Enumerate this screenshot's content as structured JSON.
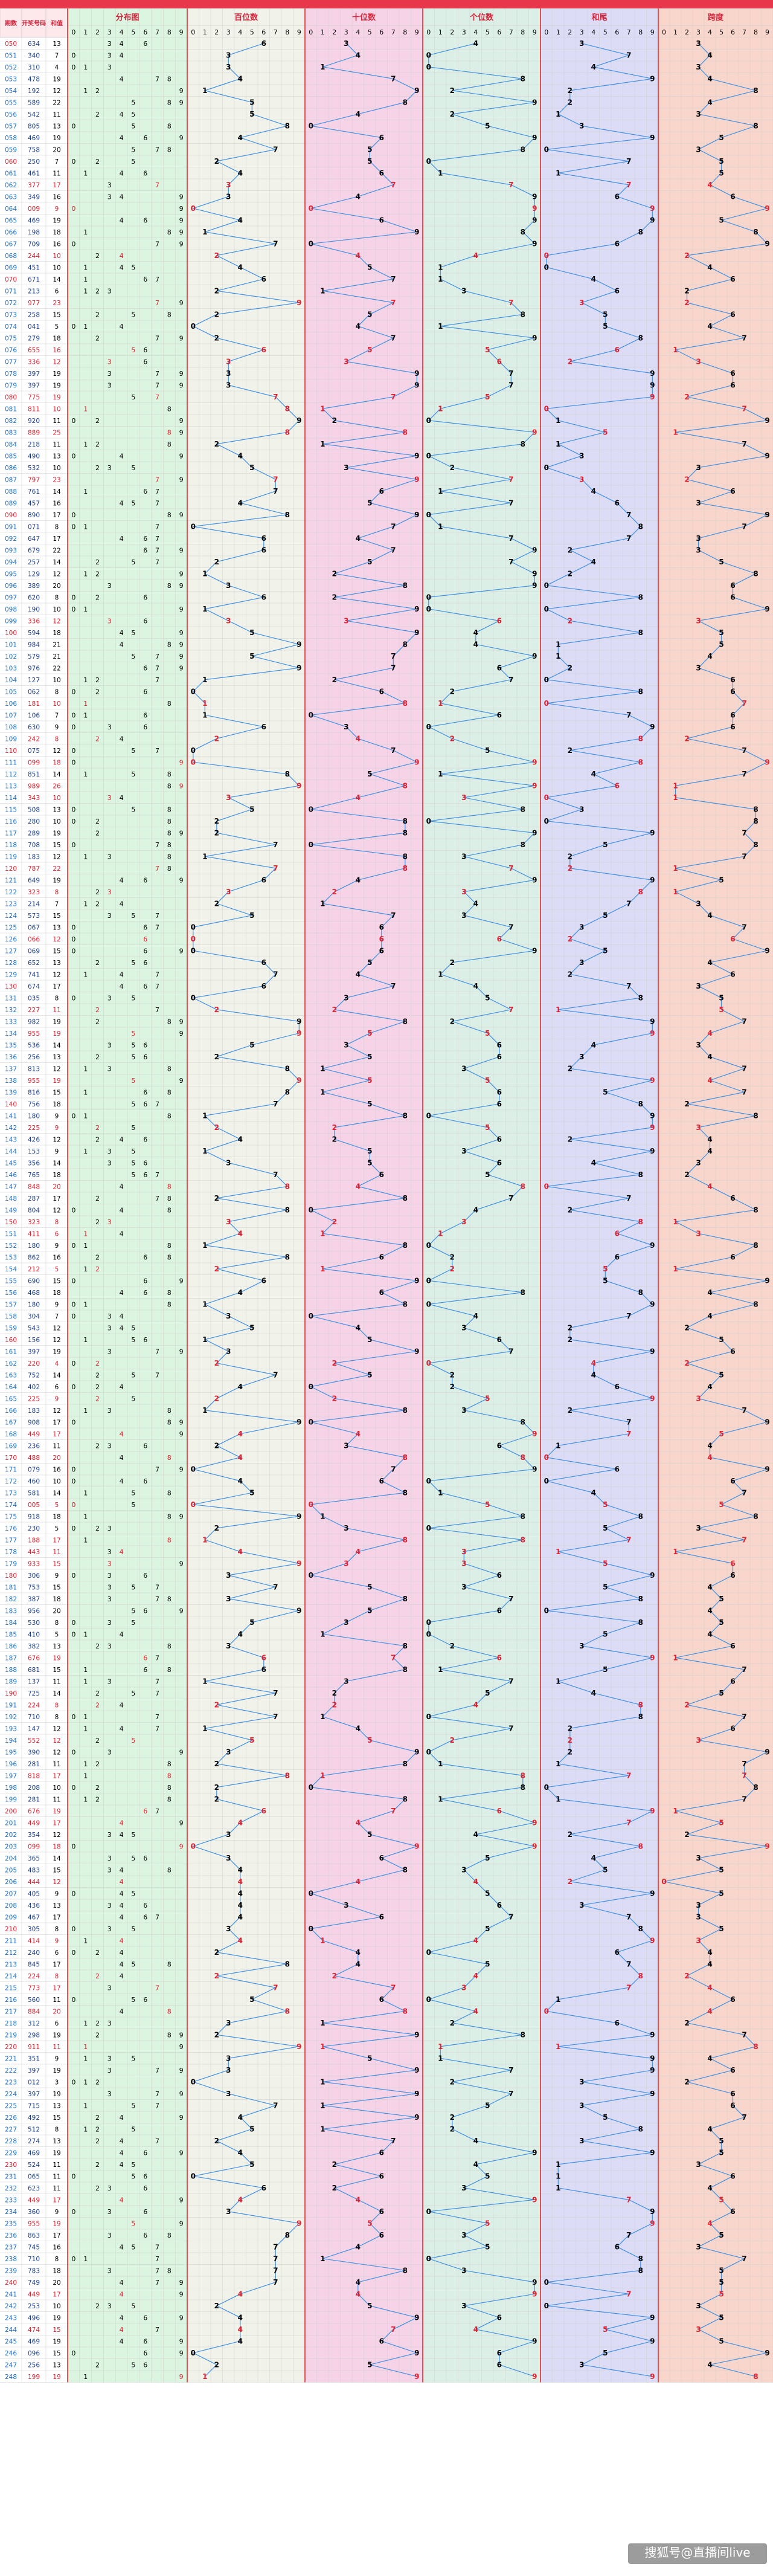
{
  "chart_data": {
    "type": "table",
    "title": "",
    "headers": {
      "issue": "期数",
      "draw": "开奖号码",
      "sum": "和值",
      "dist": "分布图",
      "hundreds": "百位数",
      "tens": "十位数",
      "units": "个位数",
      "tail": "和尾",
      "span": "跨度"
    },
    "digit_labels": [
      "0",
      "1",
      "2",
      "3",
      "4",
      "5",
      "6",
      "7",
      "8",
      "9"
    ],
    "watermark": "搜狐号@直播间live",
    "draws": [
      "634",
      "340",
      "310",
      "478",
      "192",
      "589",
      "542",
      "805",
      "469",
      "758",
      "250",
      "461",
      "377",
      "349",
      "009",
      "469",
      "198",
      "709",
      "244",
      "451",
      "671",
      "213",
      "977",
      "258",
      "041",
      "279",
      "655",
      "336",
      "397",
      "397",
      "775",
      "811",
      "920",
      "889",
      "218",
      "490",
      "532",
      "797",
      "761",
      "457",
      "890",
      "071",
      "647",
      "679",
      "257",
      "129",
      "389",
      "620",
      "190",
      "336",
      "594",
      "984",
      "579",
      "976",
      "127",
      "062",
      "181",
      "106",
      "630",
      "242",
      "075",
      "099",
      "851",
      "989",
      "343",
      "508",
      "280",
      "289",
      "708",
      "183",
      "787",
      "649",
      "323",
      "214",
      "573",
      "067",
      "066",
      "069",
      "652",
      "741",
      "674",
      "035",
      "227",
      "982",
      "955",
      "536",
      "256",
      "813",
      "955",
      "816",
      "756",
      "180",
      "225",
      "426",
      "153",
      "356",
      "765",
      "848",
      "287",
      "804",
      "323",
      "411",
      "180",
      "862",
      "212",
      "690",
      "468",
      "180",
      "304",
      "543",
      "156",
      "397",
      "220",
      "752",
      "402",
      "225",
      "183",
      "908",
      "449",
      "236",
      "488",
      "079",
      "460",
      "581",
      "005",
      "918",
      "230",
      "188",
      "443",
      "933",
      "306",
      "753",
      "387",
      "956",
      "530",
      "410",
      "382",
      "676",
      "681",
      "137",
      "725",
      "224",
      "710",
      "147",
      "552",
      "390",
      "281",
      "818",
      "208",
      "281",
      "676",
      "449",
      "354",
      "099",
      "365",
      "483",
      "444",
      "405",
      "436",
      "467",
      "305",
      "414",
      "240",
      "845",
      "224",
      "773",
      "560",
      "884",
      "312",
      "298",
      "911",
      "351",
      "397",
      "012",
      "397",
      "715",
      "492",
      "512",
      "274",
      "469",
      "524",
      "065",
      "623",
      "449",
      "360",
      "955",
      "863",
      "745",
      "710",
      "783",
      "749",
      "449",
      "253",
      "496",
      "474",
      "469",
      "096",
      "256",
      "199"
    ]
  }
}
